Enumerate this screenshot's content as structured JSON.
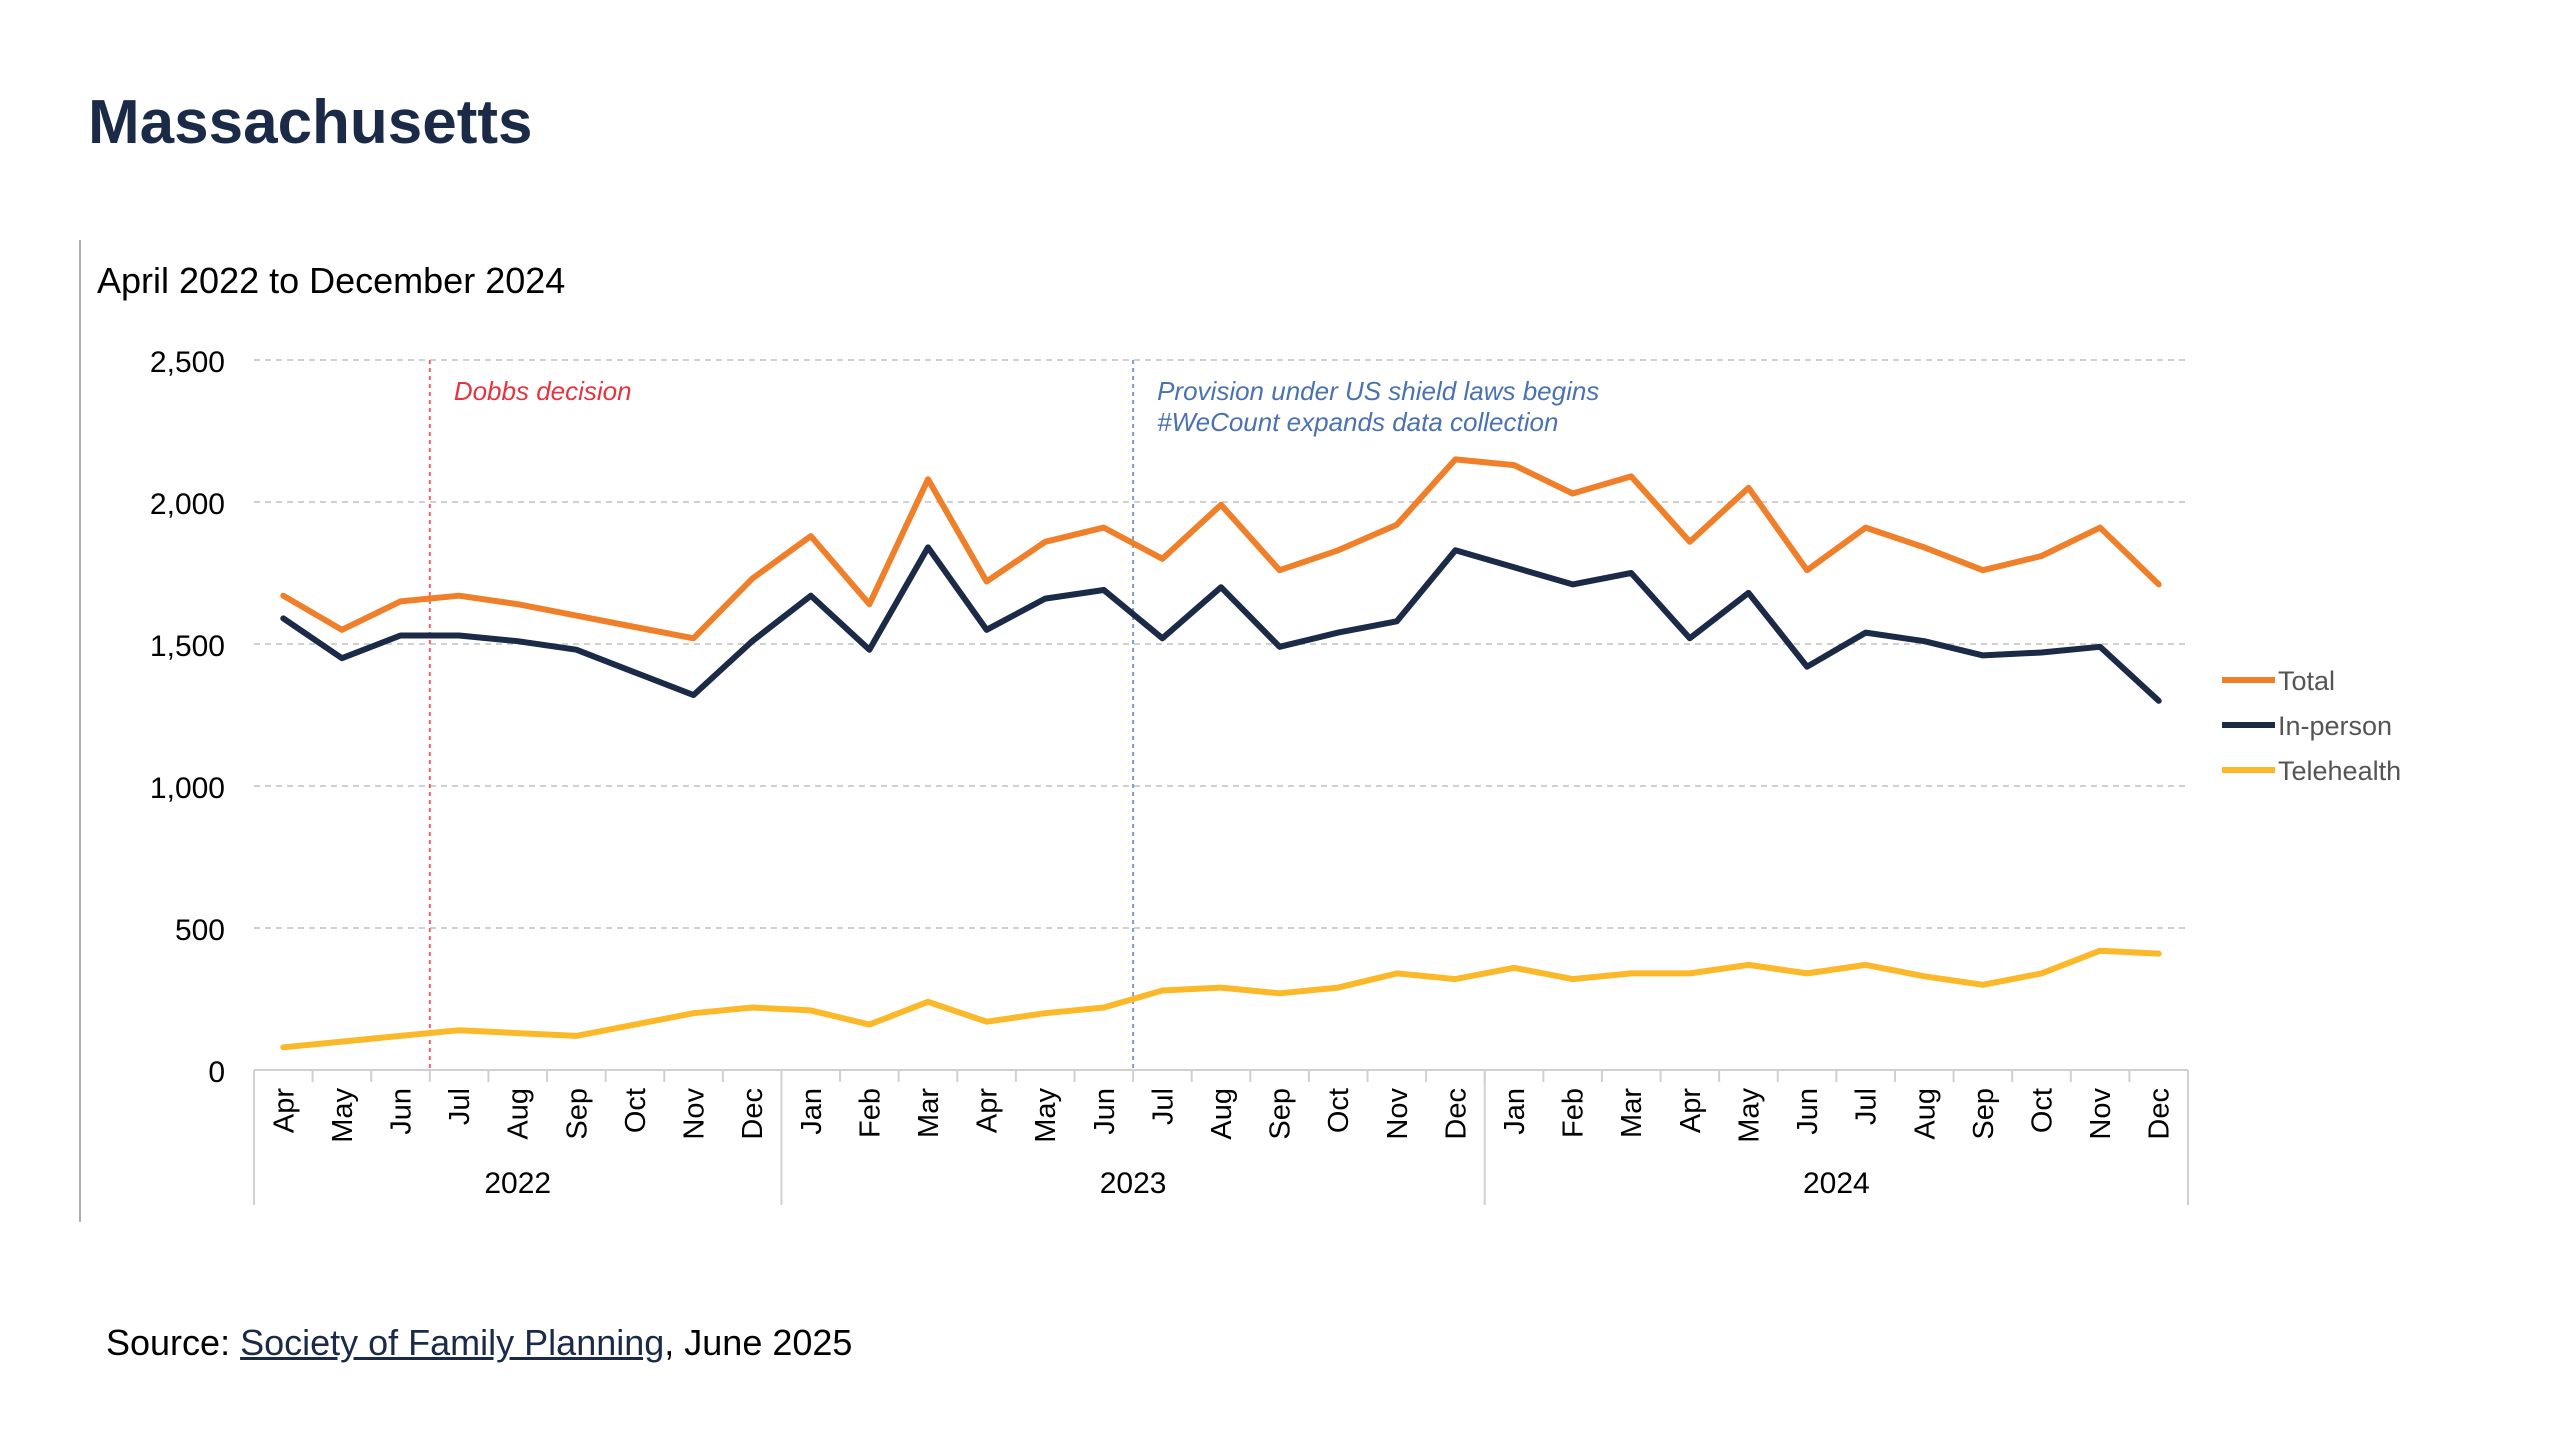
{
  "page": {
    "title": "Massachusetts",
    "source_prefix": "Source: ",
    "source_link": "Society of Family Planning",
    "source_suffix": ", June 2025"
  },
  "colors": {
    "total": "#f07f2a",
    "in_person": "#1b2a47",
    "telehealth": "#fbb829",
    "dobbs_line": "#f0606a",
    "shield_line": "#7f9ccc",
    "dobbs_text": "#e8333f",
    "shield_text": "#4a72b0",
    "grid": "#d0d0d0",
    "title": "#1b2a47"
  },
  "chart_data": {
    "type": "line",
    "title": "April 2022 to December 2024",
    "categories": [
      "Apr",
      "May",
      "Jun",
      "Jul",
      "Aug",
      "Sep",
      "Oct",
      "Nov",
      "Dec",
      "Jan",
      "Feb",
      "Mar",
      "Apr",
      "May",
      "Jun",
      "Jul",
      "Aug",
      "Sep",
      "Oct",
      "Nov",
      "Dec",
      "Jan",
      "Feb",
      "Mar",
      "Apr",
      "May",
      "Jun",
      "Jul",
      "Aug",
      "Sep",
      "Oct",
      "Nov",
      "Dec"
    ],
    "year_groups": [
      {
        "label": "2022",
        "start": 0,
        "end": 8
      },
      {
        "label": "2023",
        "start": 9,
        "end": 20
      },
      {
        "label": "2024",
        "start": 21,
        "end": 32
      }
    ],
    "ylim": [
      0,
      2500
    ],
    "yticks": [
      0,
      500,
      1000,
      1500,
      2000,
      2500
    ],
    "ytick_labels": [
      "0",
      "500",
      "1,000",
      "1,500",
      "2,000",
      "2,500"
    ],
    "grid": true,
    "legend_position": "right",
    "series": [
      {
        "name": "Total",
        "color_key": "total",
        "values": [
          1670,
          1550,
          1650,
          1670,
          1640,
          1600,
          1560,
          1520,
          1730,
          1880,
          1640,
          2080,
          1720,
          1860,
          1910,
          1800,
          1990,
          1760,
          1830,
          1920,
          2150,
          2130,
          2030,
          2090,
          1860,
          2050,
          1760,
          1910,
          1840,
          1760,
          1810,
          1910,
          1710
        ]
      },
      {
        "name": "In-person",
        "color_key": "in_person",
        "values": [
          1590,
          1450,
          1530,
          1530,
          1510,
          1480,
          1400,
          1320,
          1510,
          1670,
          1480,
          1840,
          1550,
          1660,
          1690,
          1520,
          1700,
          1490,
          1540,
          1580,
          1830,
          1770,
          1710,
          1750,
          1520,
          1680,
          1420,
          1540,
          1510,
          1460,
          1470,
          1490,
          1300
        ]
      },
      {
        "name": "Telehealth",
        "color_key": "telehealth",
        "values": [
          80,
          100,
          120,
          140,
          130,
          120,
          160,
          200,
          220,
          210,
          160,
          240,
          170,
          200,
          220,
          280,
          290,
          270,
          290,
          340,
          320,
          360,
          320,
          340,
          340,
          370,
          340,
          370,
          330,
          300,
          340,
          420,
          410
        ]
      }
    ],
    "annotations": [
      {
        "id": "dobbs",
        "after_index": 2,
        "lines": [
          "Dobbs decision"
        ],
        "color_key": "dobbs_text",
        "line_color_key": "dobbs_line"
      },
      {
        "id": "shield",
        "after_index": 14,
        "lines": [
          "Provision under US shield laws begins",
          "#WeCount expands data collection"
        ],
        "color_key": "shield_text",
        "line_color_key": "shield_line"
      }
    ]
  }
}
